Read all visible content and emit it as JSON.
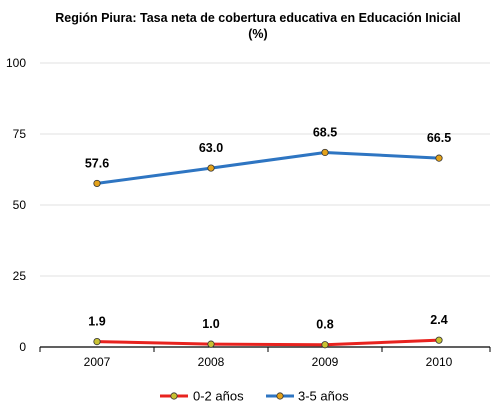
{
  "chart_data": {
    "type": "line",
    "title_lines": [
      "Región Piura: Tasa neta de cobertura educativa  en Educación Inicial",
      "(%)"
    ],
    "xlabel": "",
    "ylabel": "",
    "categories": [
      "2007",
      "2008",
      "2009",
      "2010"
    ],
    "ylim": [
      0,
      100
    ],
    "yticks": [
      0,
      25,
      50,
      75,
      100
    ],
    "ytick_labels": [
      "0",
      "25",
      "50",
      "75",
      "100"
    ],
    "grid": true,
    "legend_position": "bottom",
    "series": [
      {
        "name": "0-2 años",
        "values": [
          1.9,
          1.0,
          0.8,
          2.4
        ],
        "labels": [
          "1.9",
          "1.0",
          "0.8",
          "2.4"
        ],
        "line_color": "#e8231f",
        "marker_color": "#c9c232"
      },
      {
        "name": "3-5 años",
        "values": [
          57.6,
          63.0,
          68.5,
          66.5
        ],
        "labels": [
          "57.6",
          "63.0",
          "68.5",
          "66.5"
        ],
        "line_color": "#2e75c2",
        "marker_color": "#e4a21a"
      }
    ]
  }
}
